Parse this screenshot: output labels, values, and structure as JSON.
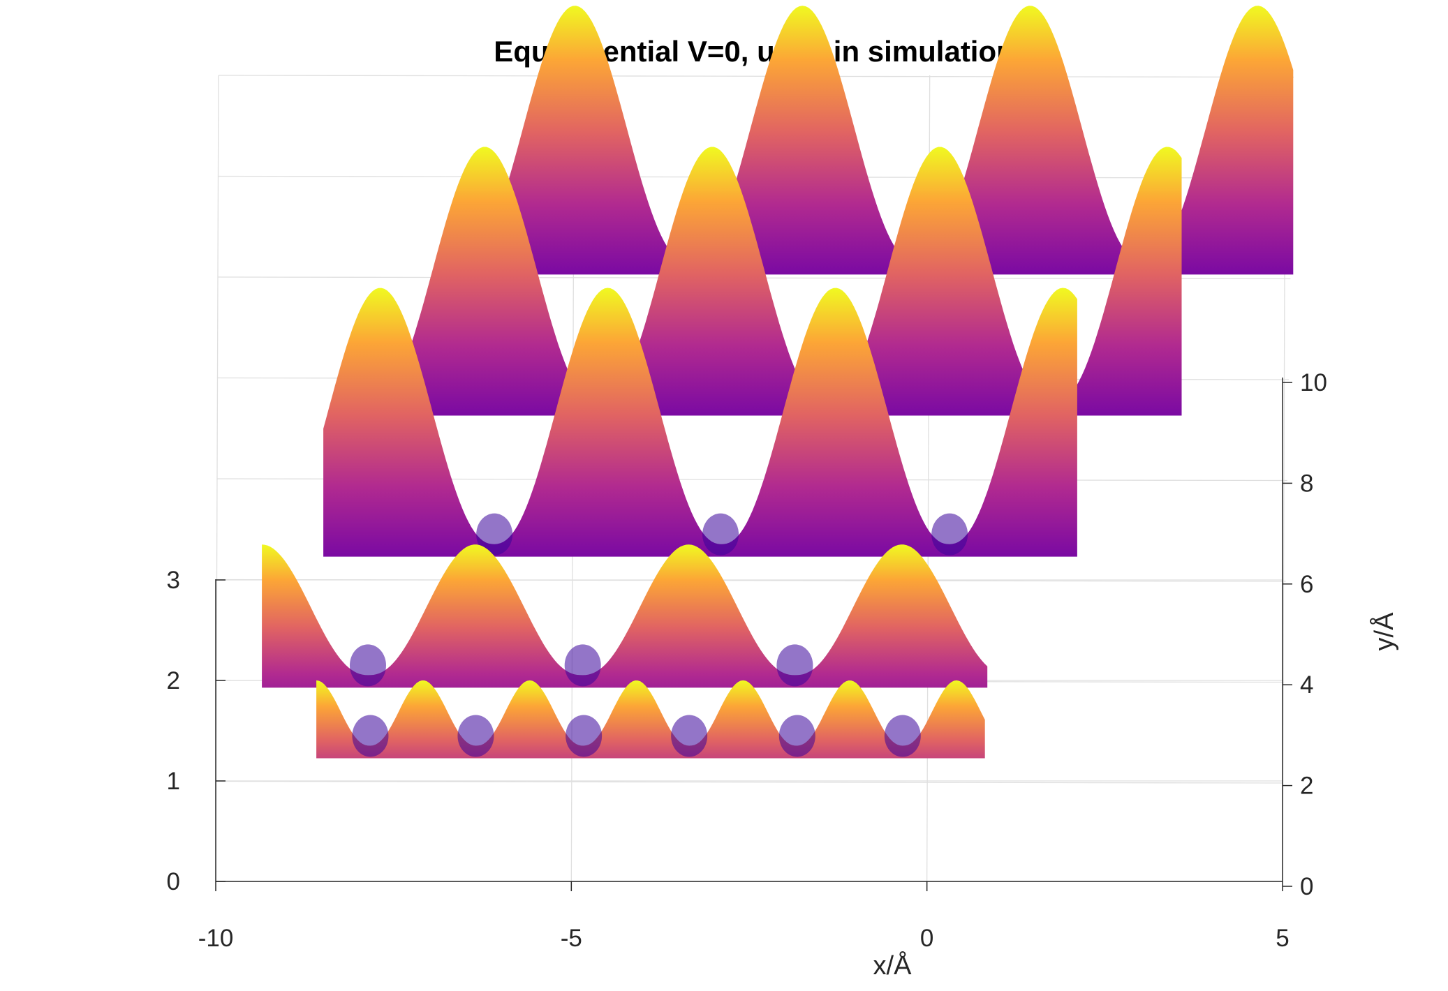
{
  "chart_data": {
    "type": "surface",
    "title": "Equipotential V=0, used in simulation",
    "xlabel": "x/Å",
    "ylabel": "y/Å",
    "zlabel": "",
    "xlim": [
      -10,
      5
    ],
    "ylim": [
      0,
      10
    ],
    "zlim": [
      0,
      3
    ],
    "x_ticks": [
      "-10",
      "-5",
      "0",
      "5"
    ],
    "y_ticks": [
      "0",
      "2",
      "4",
      "6",
      "8",
      "10"
    ],
    "z_ticks": [
      "0",
      "1",
      "2",
      "3"
    ],
    "grid": true,
    "colormap": "plasma",
    "colors": [
      "#0d0887",
      "#6a00a8",
      "#b12a90",
      "#e16462",
      "#fca636",
      "#f0f921"
    ],
    "rows": [
      {
        "y": 2.0,
        "x_start": -9.4,
        "x_end": 0.8,
        "period": 3.0,
        "peak_x": -9.4,
        "z_min": 1.05,
        "z_max": 2.35
      },
      {
        "y": 4.6,
        "x_start": -8.6,
        "x_end": 2.0,
        "period": 3.2,
        "peak_x": -7.8,
        "z_min": 1.05,
        "z_max": 3.6
      },
      {
        "y": 7.4,
        "x_start": -8.0,
        "x_end": 3.4,
        "period": 3.2,
        "peak_x": -6.4,
        "z_min": 1.05,
        "z_max": 3.6
      },
      {
        "y": 10.2,
        "x_start": -6.6,
        "x_end": 4.9,
        "period": 3.2,
        "peak_x": -5.2,
        "z_min": 1.05,
        "z_max": 3.6
      }
    ],
    "minima_row": {
      "y": 0.6,
      "x_start": -8.6,
      "x_end": 0.8,
      "period": 1.5,
      "peak_x": -8.6,
      "z_min": 1.05,
      "z_max": 1.7
    }
  }
}
